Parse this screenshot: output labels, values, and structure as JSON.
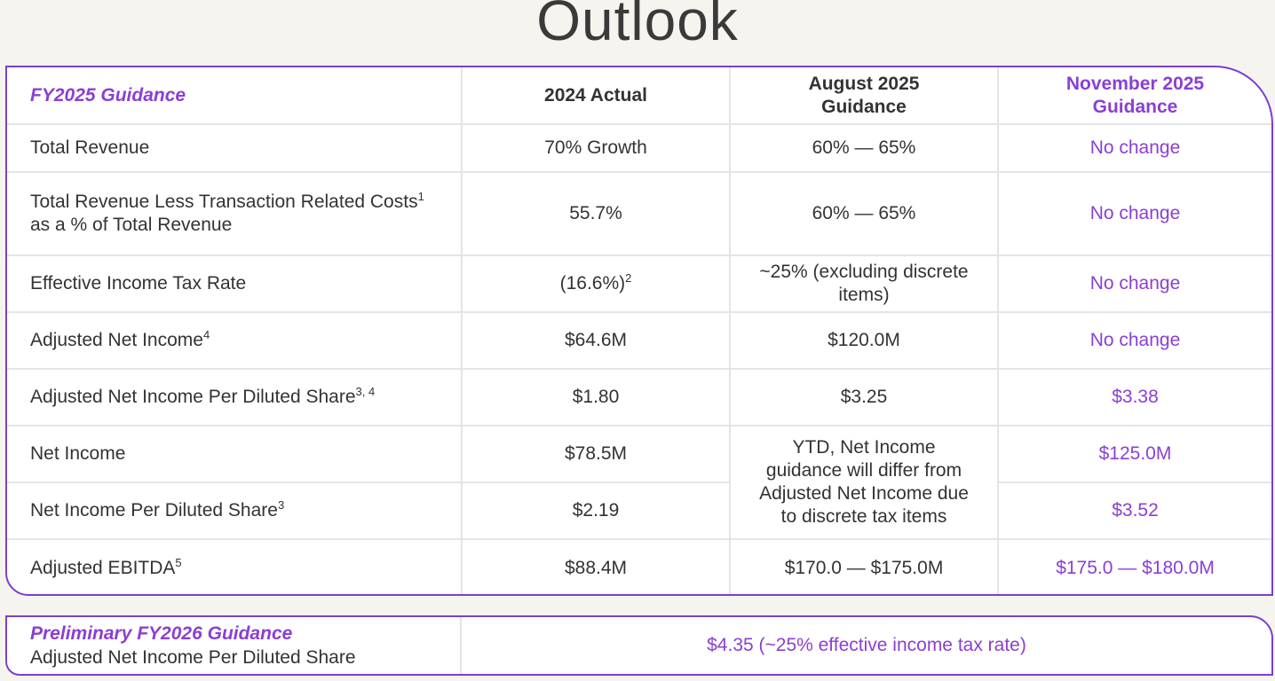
{
  "page": {
    "title": "Outlook"
  },
  "colors": {
    "accent": "#8a3fd4",
    "border": "#7b3fd1",
    "background": "#f6f4ee"
  },
  "fy2025": {
    "header": {
      "label": "FY2025 Guidance",
      "col_actual": "2024 Actual",
      "col_august": "August 2025 Guidance",
      "col_november": "November 2025 Guidance"
    },
    "rows": [
      {
        "label": "Total Revenue",
        "sup": "",
        "actual": "70% Growth",
        "actual_sup": "",
        "august": "60% — 65%",
        "november": "No change"
      },
      {
        "label": "Total Revenue Less Transaction Related Costs",
        "sup": "1",
        "label_line2": "as a % of Total Revenue",
        "actual": "55.7%",
        "actual_sup": "",
        "august": "60% — 65%",
        "november": "No change"
      },
      {
        "label": "Effective Income Tax Rate",
        "sup": "",
        "actual": "(16.6%)",
        "actual_sup": "2",
        "august": "~25% (excluding discrete items)",
        "november": "No change"
      },
      {
        "label": "Adjusted Net Income",
        "sup": "4",
        "actual": "$64.6M",
        "actual_sup": "",
        "august": "$120.0M",
        "november": "No change"
      },
      {
        "label": "Adjusted Net Income Per Diluted Share",
        "sup": "3, 4",
        "actual": "$1.80",
        "actual_sup": "",
        "august": "$3.25",
        "november": "$3.38"
      },
      {
        "label": "Net Income",
        "sup": "",
        "actual": "$78.5M",
        "actual_sup": "",
        "august": "YTD, Net Income guidance will differ from Adjusted Net Income due to discrete tax items",
        "november": "$125.0M"
      },
      {
        "label": "Net Income Per Diluted Share",
        "sup": "3",
        "actual": "$2.19",
        "actual_sup": "",
        "november": "$3.52"
      },
      {
        "label": "Adjusted EBITDA",
        "sup": "5",
        "actual": "$88.4M",
        "actual_sup": "",
        "august": "$170.0 — $175.0M",
        "november": "$175.0 — $180.0M"
      }
    ]
  },
  "fy2026": {
    "title": "Preliminary FY2026 Guidance",
    "metric": "Adjusted Net Income Per Diluted Share",
    "value": "$4.35 (~25% effective income tax rate)"
  }
}
